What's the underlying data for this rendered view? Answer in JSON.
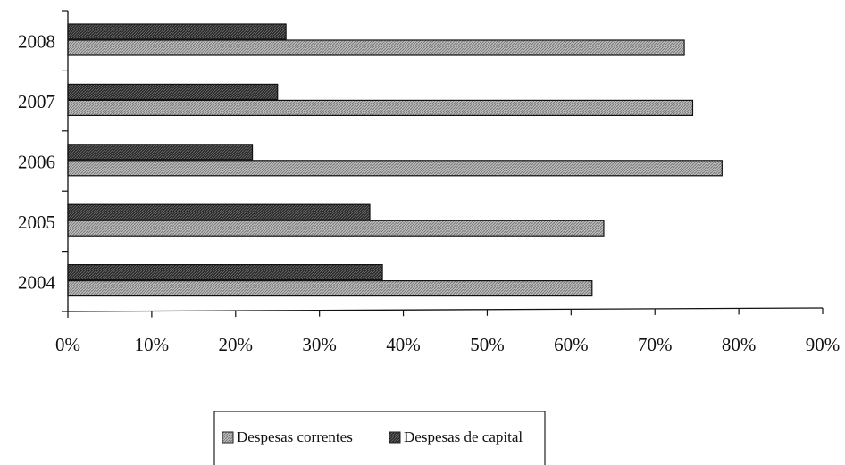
{
  "chart_data": {
    "type": "bar",
    "orientation": "horizontal",
    "categories": [
      "2004",
      "2005",
      "2006",
      "2007",
      "2008"
    ],
    "series": [
      {
        "name": "Despesas correntes",
        "values": [
          62.5,
          63.9,
          78.0,
          74.5,
          73.5
        ]
      },
      {
        "name": "Despesas de capital",
        "values": [
          37.5,
          36.0,
          22.0,
          25.0,
          26.0
        ]
      }
    ],
    "x_ticks": [
      "0%",
      "10%",
      "20%",
      "30%",
      "40%",
      "50%",
      "60%",
      "70%",
      "80%",
      "90%"
    ],
    "xlim": [
      0,
      90
    ],
    "legend_position": "bottom",
    "grid": false,
    "colors": {
      "Despesas correntes": "#a8a8a8",
      "Despesas de capital": "#3a3a3a"
    }
  }
}
